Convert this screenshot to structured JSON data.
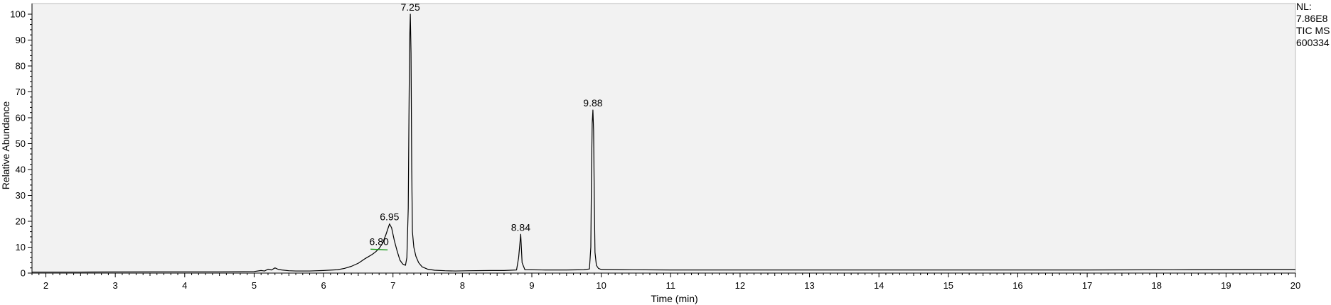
{
  "chart_data": {
    "type": "line",
    "xlabel": "Time (min)",
    "ylabel": "Relative Abundance",
    "xlim": [
      1.8,
      20
    ],
    "ylim": [
      0,
      100
    ],
    "x_ticks": [
      "2",
      "3",
      "4",
      "5",
      "6",
      "7",
      "8",
      "9",
      "10",
      "11",
      "12",
      "13",
      "14",
      "15",
      "16",
      "17",
      "18",
      "19",
      "20"
    ],
    "y_ticks": [
      "0",
      "10",
      "20",
      "30",
      "40",
      "50",
      "60",
      "70",
      "80",
      "90",
      "100"
    ],
    "info": [
      "NL:",
      "7.86E8",
      "TIC  MS",
      "600334"
    ],
    "series": [
      {
        "x": [
          1.8,
          2.5,
          3.5,
          4.5,
          5.0,
          5.1,
          5.15,
          5.2,
          5.25,
          5.3,
          5.35,
          5.4,
          5.5,
          5.6,
          5.8,
          6.0,
          6.2,
          6.3,
          6.4,
          6.5,
          6.6,
          6.7,
          6.75,
          6.8,
          6.85,
          6.9,
          6.95,
          6.98,
          7.02,
          7.06,
          7.1,
          7.14,
          7.18,
          7.2,
          7.22,
          7.23,
          7.24,
          7.25,
          7.26,
          7.27,
          7.28,
          7.3,
          7.33,
          7.37,
          7.42,
          7.5,
          7.6,
          7.75,
          7.9,
          8.1,
          8.4,
          8.6,
          8.78,
          8.81,
          8.84,
          8.86,
          8.9,
          9.2,
          9.5,
          9.75,
          9.83,
          9.85,
          9.86,
          9.87,
          9.88,
          9.89,
          9.9,
          9.91,
          9.93,
          9.96,
          10.0,
          10.3,
          11.0,
          13.0,
          15.0,
          17.0,
          18.5,
          19.5,
          20.0
        ],
        "y": [
          0.4,
          0.4,
          0.5,
          0.5,
          0.6,
          1.0,
          0.8,
          1.5,
          1.2,
          2.0,
          1.4,
          1.2,
          0.9,
          0.8,
          0.8,
          1.0,
          1.3,
          1.8,
          2.6,
          3.8,
          5.6,
          7.2,
          8.2,
          9.5,
          11.5,
          15.0,
          19.0,
          17.5,
          12.5,
          8.5,
          5.0,
          3.5,
          3.0,
          6.0,
          25.0,
          60.0,
          90.0,
          100.0,
          85.0,
          40.0,
          16.0,
          10.0,
          6.5,
          4.0,
          2.4,
          1.5,
          1.1,
          0.9,
          0.8,
          0.9,
          1.0,
          1.0,
          1.2,
          6.0,
          15.0,
          4.0,
          1.3,
          1.2,
          1.2,
          1.3,
          1.6,
          10.0,
          40.0,
          58.0,
          63.0,
          55.0,
          28.0,
          8.0,
          3.0,
          1.8,
          1.4,
          1.3,
          1.2,
          1.2,
          1.2,
          1.2,
          1.3,
          1.4,
          1.4
        ]
      }
    ],
    "annotations": [
      {
        "x": 7.25,
        "y": 100,
        "text": "7.25"
      },
      {
        "x": 6.95,
        "y": 19,
        "text": "6.95"
      },
      {
        "x": 6.8,
        "y": 9.5,
        "text": "6.80"
      },
      {
        "x": 8.84,
        "y": 15,
        "text": "8.84"
      },
      {
        "x": 9.88,
        "y": 63,
        "text": "9.88"
      }
    ],
    "colors": {
      "plot_background": "#f2f2f2",
      "trace": "#000000",
      "marker_6_80": "#1a9a1a"
    }
  }
}
